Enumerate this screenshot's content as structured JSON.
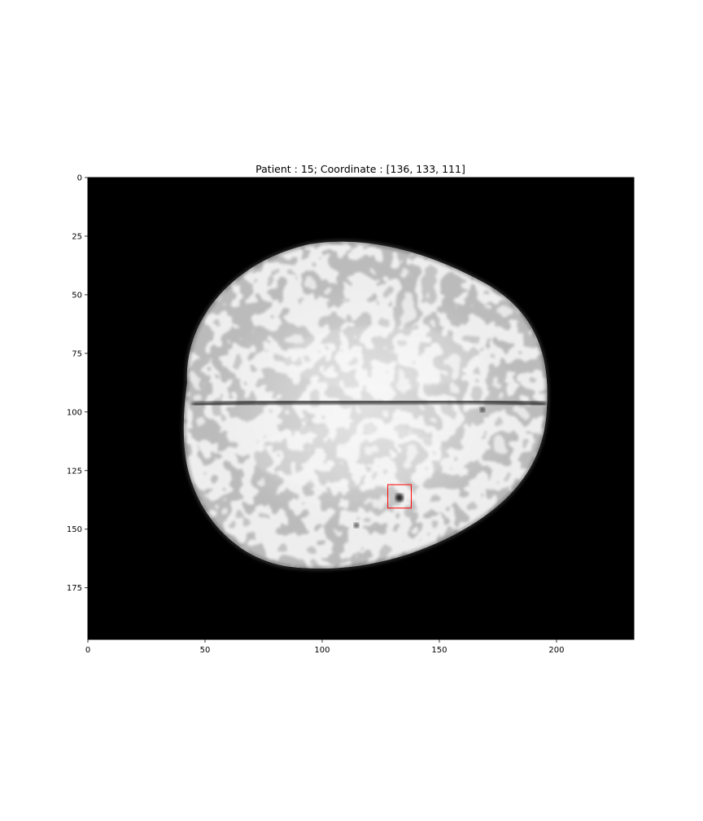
{
  "figure": {
    "title": "Patient : 15; Coordinate : [136, 133, 111]"
  },
  "image": {
    "kind": "axial brain MRI slice",
    "colormap": "grayscale",
    "background_color": "#000000",
    "x_range": [
      0,
      233
    ],
    "y_range": [
      0,
      197
    ],
    "x_ticks": [
      0,
      50,
      100,
      150,
      200
    ],
    "y_ticks": [
      0,
      25,
      50,
      75,
      100,
      125,
      150,
      175
    ],
    "y_inverted": true
  },
  "annotation": {
    "shape": "rectangle",
    "color": "#ff0000",
    "x_range": [
      128,
      138
    ],
    "y_range": [
      131,
      141
    ]
  }
}
